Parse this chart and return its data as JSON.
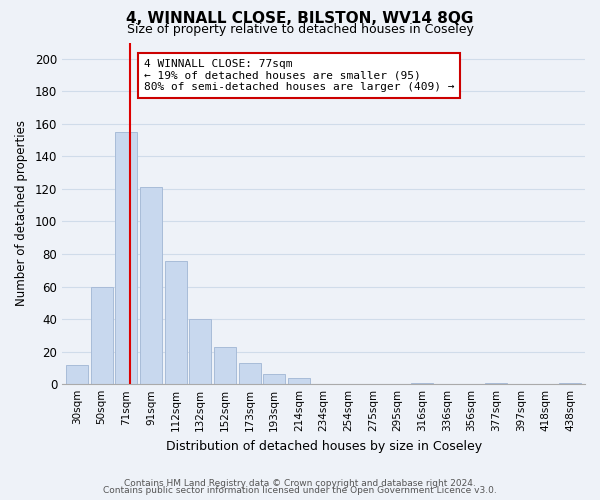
{
  "title": "4, WINNALL CLOSE, BILSTON, WV14 8QG",
  "subtitle": "Size of property relative to detached houses in Coseley",
  "xlabel": "Distribution of detached houses by size in Coseley",
  "ylabel": "Number of detached properties",
  "bar_labels": [
    "30sqm",
    "50sqm",
    "71sqm",
    "91sqm",
    "112sqm",
    "132sqm",
    "152sqm",
    "173sqm",
    "193sqm",
    "214sqm",
    "234sqm",
    "254sqm",
    "275sqm",
    "295sqm",
    "316sqm",
    "336sqm",
    "356sqm",
    "377sqm",
    "397sqm",
    "418sqm",
    "438sqm"
  ],
  "bar_values": [
    12,
    60,
    155,
    121,
    76,
    40,
    23,
    13,
    6,
    4,
    0,
    0,
    0,
    0,
    1,
    0,
    0,
    1,
    0,
    0,
    1
  ],
  "bar_color": "#c8d8ee",
  "bar_edge_color": "#a8bcd8",
  "vline_x": 2,
  "vline_color": "#dd0000",
  "annotation_text": "4 WINNALL CLOSE: 77sqm\n← 19% of detached houses are smaller (95)\n80% of semi-detached houses are larger (409) →",
  "annotation_box_color": "#ffffff",
  "annotation_box_edge": "#cc0000",
  "ylim": [
    0,
    210
  ],
  "yticks": [
    0,
    20,
    40,
    60,
    80,
    100,
    120,
    140,
    160,
    180,
    200
  ],
  "grid_color": "#d0dcea",
  "footer1": "Contains HM Land Registry data © Crown copyright and database right 2024.",
  "footer2": "Contains public sector information licensed under the Open Government Licence v3.0.",
  "bg_color": "#eef2f8",
  "plot_bg_color": "#eef2f8"
}
